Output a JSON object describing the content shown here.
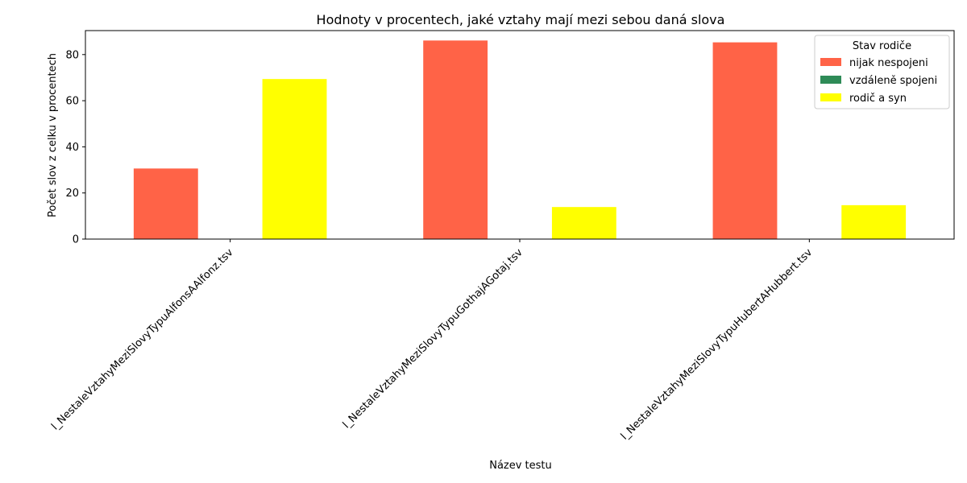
{
  "chart_data": {
    "type": "bar",
    "title": "Hodnoty v procentech, jaké vztahy mají mezi sebou daná slova",
    "xlabel": "Název testu",
    "ylabel": "Počet slov z celku v procentech",
    "categories": [
      "l_NestaleVztahyMeziSlovyTypuAlfonsAAlfonz.tsv",
      "l_NestaleVztahyMeziSlovyTypuGothajAGotaj.tsv",
      "l_NestaleVztahyMeziSlovyTypuHubertAHubbert.tsv"
    ],
    "series": [
      {
        "name": "nijak nespojeni",
        "color": "#ff6347",
        "values": [
          30.6,
          86.1,
          85.3
        ]
      },
      {
        "name": "vzdáleně spojeni",
        "color": "#2e8b57",
        "values": [
          0,
          0,
          0
        ]
      },
      {
        "name": "rodič a syn",
        "color": "#ffff00",
        "values": [
          69.4,
          13.9,
          14.7
        ]
      }
    ],
    "ylim": [
      0,
      90.4
    ],
    "yticks": [
      0,
      20,
      40,
      60,
      80
    ],
    "legend": {
      "title": "Stav rodiče",
      "position": "top-right"
    },
    "grid": false
  }
}
